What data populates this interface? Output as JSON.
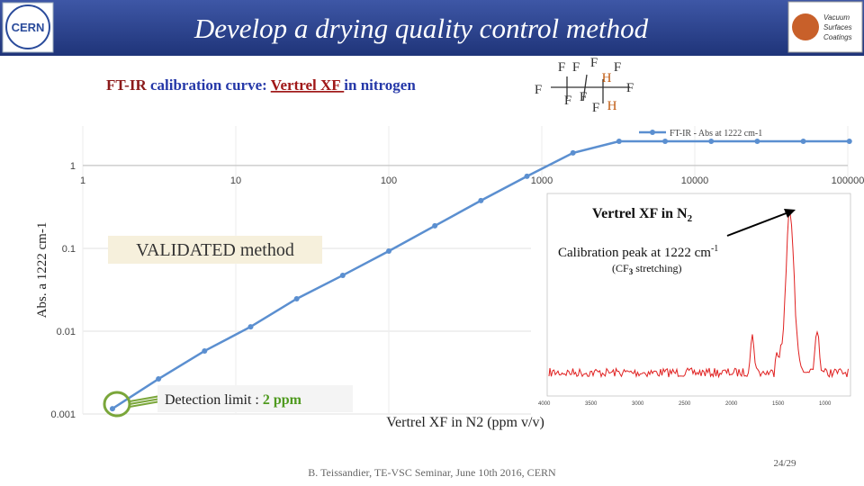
{
  "header": {
    "title": "Develop a drying quality control method",
    "subtitle": [
      "FT-IR",
      " calibration curve: ",
      "Vertrel XF ",
      "in nitrogen"
    ],
    "logo_left": "CERN",
    "logo_right": [
      "Vacuum",
      "Surfaces",
      "Coatings"
    ]
  },
  "molecule": {
    "atoms": [
      "F",
      "F",
      "F",
      "H",
      "F",
      "F",
      "F",
      "F",
      "F",
      "H",
      "F"
    ]
  },
  "chart_data": {
    "type": "line",
    "legend": "FT-IR - Abs at 1222 cm-1",
    "y_label": "Abs. a 1222 cm-1",
    "x_label": "Vertrel XF in N2 (ppm v/v)",
    "xscale": "log",
    "yscale": "log",
    "grid": true,
    "legend_position": "top-right",
    "x": [
      1.5625,
      3.125,
      6.25,
      12.5,
      25,
      50,
      100,
      200,
      400,
      800,
      1600,
      3200,
      6400,
      12800,
      25600,
      51200,
      102400
    ],
    "series": [
      {
        "name": "FT-IR - Abs at 1222 cm-1",
        "color": "#5b8fd0",
        "values": [
          0.00116,
          0.00265,
          0.00577,
          0.0113,
          0.0246,
          0.0472,
          0.0927,
          0.187,
          0.377,
          0.741,
          1.42,
          1.96,
          1.96,
          1.96,
          1.96,
          1.96,
          1.96
        ]
      }
    ],
    "xlim": [
      1,
      100000
    ],
    "xticks": [
      1,
      10,
      100,
      1000,
      10000,
      100000
    ],
    "ylim": [
      0.001,
      3
    ],
    "yticks": [
      0.001,
      0.01,
      0.1,
      1
    ]
  },
  "annotations": {
    "validated": "VALIDATED method",
    "detection": [
      "Detection limit : ",
      "2 ppm"
    ]
  },
  "inset": {
    "title": [
      "Vertrel XF in N",
      "2"
    ],
    "peak": [
      "Calibration peak at 1222 cm",
      "-1"
    ],
    "note": [
      "(CF",
      "3",
      " stretching)"
    ],
    "x_ticks": [
      "4000",
      "3500",
      "3000",
      "2500",
      "2000",
      "1500",
      "1000"
    ]
  },
  "footer": {
    "credit": "B. Teissandier, TE-VSC Seminar, June 10th 2016, CERN",
    "page": "24/29"
  }
}
